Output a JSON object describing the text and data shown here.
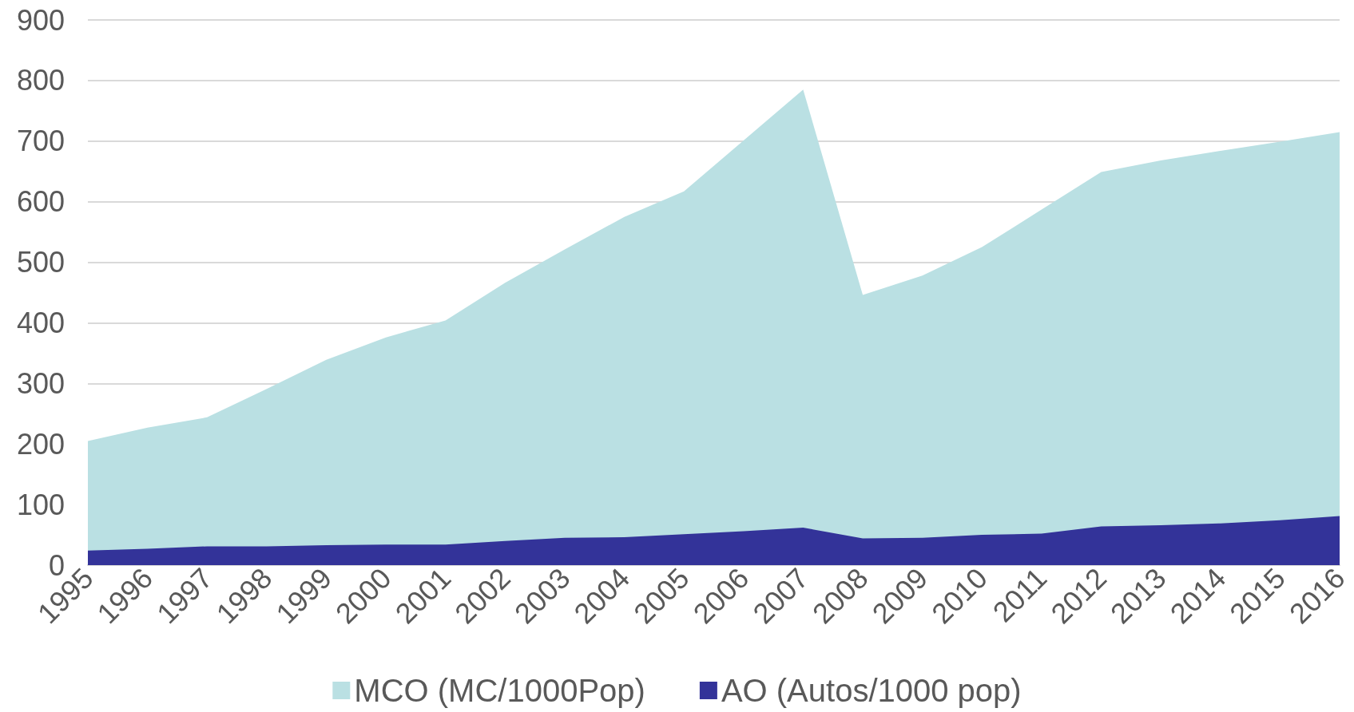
{
  "chart_data": {
    "type": "area",
    "categories": [
      "1995",
      "1996",
      "1997",
      "1998",
      "1999",
      "2000",
      "2001",
      "2002",
      "2003",
      "2004",
      "2005",
      "2006",
      "2007",
      "2008",
      "2009",
      "2010",
      "2011",
      "2012",
      "2013",
      "2014",
      "2015",
      "2016"
    ],
    "series": [
      {
        "name": "MCO (MC/1000Pop)",
        "color": "#bae0e3",
        "values": [
          205,
          227,
          244,
          291,
          339,
          376,
          404,
          466,
          521,
          575,
          617,
          701,
          785,
          446,
          478,
          525,
          587,
          649,
          668,
          684,
          699,
          715
        ]
      },
      {
        "name": "AO (Autos/1000 pop)",
        "color": "#333399",
        "values": [
          24,
          27,
          31,
          31,
          33,
          34,
          34,
          40,
          45,
          46,
          51,
          56,
          62,
          44,
          45,
          50,
          52,
          64,
          66,
          69,
          74,
          81
        ]
      }
    ],
    "ylim": [
      0,
      900
    ],
    "yticks": [
      0,
      100,
      200,
      300,
      400,
      500,
      600,
      700,
      800,
      900
    ],
    "grid": "y",
    "legend": "bottom"
  }
}
